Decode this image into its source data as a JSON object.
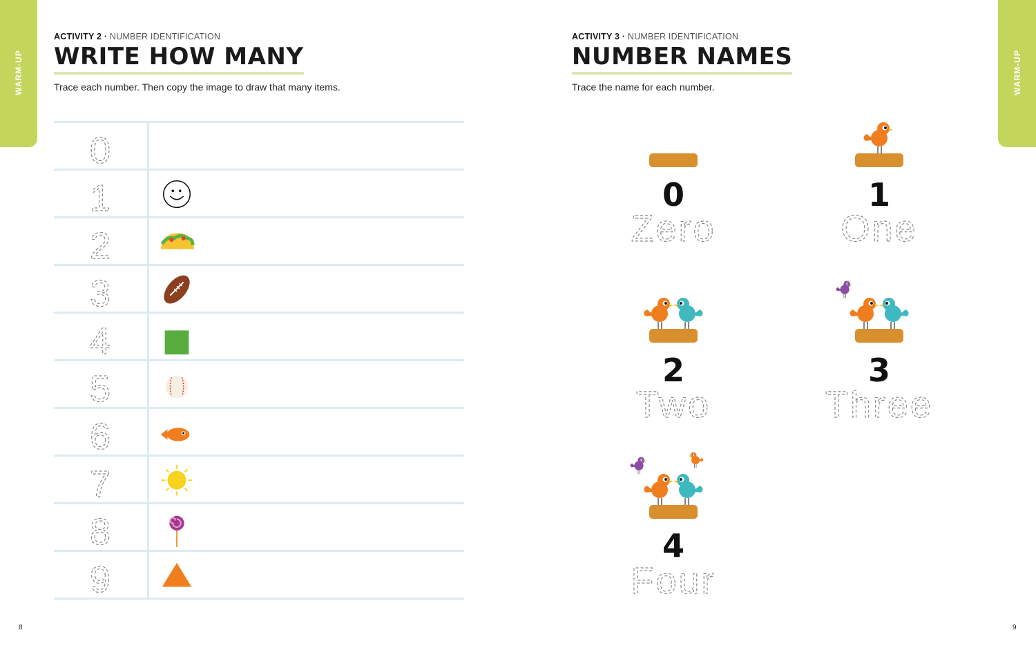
{
  "side_tab": "WARM-UP",
  "left": {
    "kicker_bold": "ACTIVITY 2 ·",
    "kicker": "NUMBER IDENTIFICATION",
    "title": "WRITE HOW MANY",
    "instructions": "Trace each number. Then copy the image to draw that many items.",
    "rows": [
      {
        "digit": "0",
        "icon": "none"
      },
      {
        "digit": "1",
        "icon": "smiley-icon"
      },
      {
        "digit": "2",
        "icon": "taco-icon"
      },
      {
        "digit": "3",
        "icon": "football-icon"
      },
      {
        "digit": "4",
        "icon": "green-square-icon"
      },
      {
        "digit": "5",
        "icon": "baseball-icon"
      },
      {
        "digit": "6",
        "icon": "fish-icon"
      },
      {
        "digit": "7",
        "icon": "sun-icon"
      },
      {
        "digit": "8",
        "icon": "lollipop-icon"
      },
      {
        "digit": "9",
        "icon": "triangle-icon"
      }
    ],
    "page_number": "8"
  },
  "right": {
    "kicker_bold": "ACTIVITY 3 ·",
    "kicker": "NUMBER IDENTIFICATION",
    "title": "NUMBER NAMES",
    "instructions": "Trace the name for each number.",
    "items": [
      {
        "number": "0",
        "name": "Zero",
        "birds": 0
      },
      {
        "number": "1",
        "name": "One",
        "birds": 1
      },
      {
        "number": "2",
        "name": "Two",
        "birds": 2
      },
      {
        "number": "3",
        "name": "Three",
        "birds": 3
      },
      {
        "number": "4",
        "name": "Four",
        "birds": 4
      }
    ],
    "page_number": "9"
  },
  "colors": {
    "tab": "#c3d65b",
    "nest": "#d8902f",
    "orange_bird": "#f07d1e",
    "teal_bird": "#3fb8c0",
    "purple_bird": "#8d4ca3",
    "rule": "#dcebf0"
  }
}
